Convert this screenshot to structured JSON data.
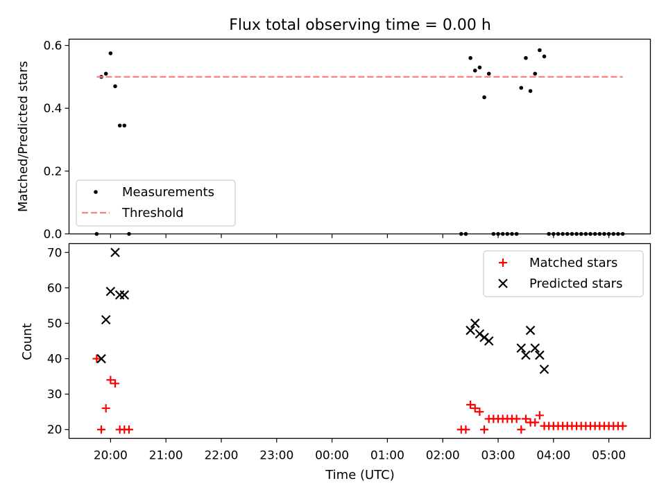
{
  "figure": {
    "title": "Flux total observing time = 0.00 h",
    "xlabel": "Time (UTC)",
    "xticks": [
      "20:00",
      "21:00",
      "22:00",
      "23:00",
      "00:00",
      "01:00",
      "02:00",
      "03:00",
      "04:00",
      "05:00"
    ],
    "xlim": [
      "19:15",
      "05:45"
    ]
  },
  "chart_data": [
    {
      "type": "scatter",
      "ylabel": "Matched/Predicted stars",
      "ylim": [
        0,
        0.62
      ],
      "yticks": [
        "0.0",
        "0.2",
        "0.4",
        "0.6"
      ],
      "legend_position": "lower-left",
      "series": [
        {
          "name": "Measurements",
          "color": "#000000",
          "marker": "dot",
          "points": [
            [
              "19:45",
              0.0
            ],
            [
              "19:50",
              0.5
            ],
            [
              "19:55",
              0.51
            ],
            [
              "20:00",
              0.575
            ],
            [
              "20:05",
              0.47
            ],
            [
              "20:10",
              0.345
            ],
            [
              "20:15",
              0.345
            ],
            [
              "20:20",
              0.0
            ],
            [
              "02:20",
              0.0
            ],
            [
              "02:25",
              0.0
            ],
            [
              "02:30",
              0.56
            ],
            [
              "02:35",
              0.52
            ],
            [
              "02:40",
              0.53
            ],
            [
              "02:45",
              0.435
            ],
            [
              "02:50",
              0.51
            ],
            [
              "02:55",
              0.0
            ],
            [
              "03:00",
              0.0
            ],
            [
              "03:05",
              0.0
            ],
            [
              "03:10",
              0.0
            ],
            [
              "03:15",
              0.0
            ],
            [
              "03:20",
              0.0
            ],
            [
              "03:25",
              0.465
            ],
            [
              "03:30",
              0.56
            ],
            [
              "03:35",
              0.455
            ],
            [
              "03:40",
              0.51
            ],
            [
              "03:45",
              0.585
            ],
            [
              "03:50",
              0.565
            ],
            [
              "03:55",
              0.0
            ],
            [
              "04:00",
              0.0
            ],
            [
              "04:05",
              0.0
            ],
            [
              "04:10",
              0.0
            ],
            [
              "04:15",
              0.0
            ],
            [
              "04:20",
              0.0
            ],
            [
              "04:25",
              0.0
            ],
            [
              "04:30",
              0.0
            ],
            [
              "04:35",
              0.0
            ],
            [
              "04:40",
              0.0
            ],
            [
              "04:45",
              0.0
            ],
            [
              "04:50",
              0.0
            ],
            [
              "04:55",
              0.0
            ],
            [
              "05:00",
              0.0
            ],
            [
              "05:05",
              0.0
            ],
            [
              "05:10",
              0.0
            ],
            [
              "05:15",
              0.0
            ]
          ]
        },
        {
          "name": "Threshold",
          "color": "#ff7f7f",
          "style": "dashed",
          "points": [
            [
              "19:45",
              0.5
            ],
            [
              "05:15",
              0.5
            ]
          ]
        }
      ]
    },
    {
      "type": "scatter",
      "ylabel": "Count",
      "ylim": [
        17.5,
        72.5
      ],
      "yticks": [
        "20",
        "30",
        "40",
        "50",
        "60",
        "70"
      ],
      "legend_position": "top-right",
      "series": [
        {
          "name": "Matched stars",
          "color": "#ff0000",
          "marker": "plus",
          "points": [
            [
              "19:45",
              40
            ],
            [
              "19:50",
              20
            ],
            [
              "19:55",
              26
            ],
            [
              "20:00",
              34
            ],
            [
              "20:05",
              33
            ],
            [
              "20:10",
              20
            ],
            [
              "20:15",
              20
            ],
            [
              "20:20",
              20
            ],
            [
              "02:20",
              20
            ],
            [
              "02:25",
              20
            ],
            [
              "02:30",
              27
            ],
            [
              "02:35",
              26
            ],
            [
              "02:40",
              25
            ],
            [
              "02:45",
              20
            ],
            [
              "02:50",
              23
            ],
            [
              "02:55",
              23
            ],
            [
              "03:00",
              23
            ],
            [
              "03:05",
              23
            ],
            [
              "03:10",
              23
            ],
            [
              "03:15",
              23
            ],
            [
              "03:20",
              23
            ],
            [
              "03:25",
              20
            ],
            [
              "03:30",
              23
            ],
            [
              "03:35",
              22
            ],
            [
              "03:40",
              22
            ],
            [
              "03:45",
              24
            ],
            [
              "03:50",
              21
            ],
            [
              "03:55",
              21
            ],
            [
              "04:00",
              21
            ],
            [
              "04:05",
              21
            ],
            [
              "04:10",
              21
            ],
            [
              "04:15",
              21
            ],
            [
              "04:20",
              21
            ],
            [
              "04:25",
              21
            ],
            [
              "04:30",
              21
            ],
            [
              "04:35",
              21
            ],
            [
              "04:40",
              21
            ],
            [
              "04:45",
              21
            ],
            [
              "04:50",
              21
            ],
            [
              "04:55",
              21
            ],
            [
              "05:00",
              21
            ],
            [
              "05:05",
              21
            ],
            [
              "05:10",
              21
            ],
            [
              "05:15",
              21
            ]
          ]
        },
        {
          "name": "Predicted stars",
          "color": "#000000",
          "marker": "x",
          "points": [
            [
              "19:50",
              40
            ],
            [
              "19:55",
              51
            ],
            [
              "20:00",
              59
            ],
            [
              "20:05",
              70
            ],
            [
              "20:10",
              58
            ],
            [
              "20:15",
              58
            ],
            [
              "02:30",
              48
            ],
            [
              "02:35",
              50
            ],
            [
              "02:40",
              47
            ],
            [
              "02:45",
              46
            ],
            [
              "02:50",
              45
            ],
            [
              "03:25",
              43
            ],
            [
              "03:30",
              41
            ],
            [
              "03:35",
              48
            ],
            [
              "03:40",
              43
            ],
            [
              "03:45",
              41
            ],
            [
              "03:50",
              37
            ]
          ]
        }
      ]
    }
  ]
}
